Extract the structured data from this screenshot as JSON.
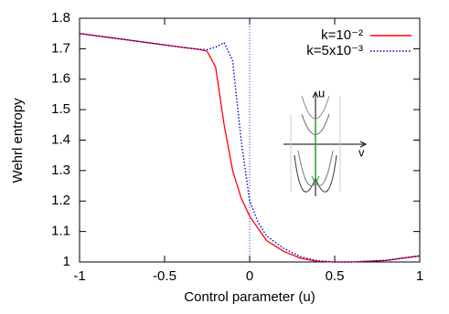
{
  "chart_data": {
    "type": "line",
    "x_label": "Control parameter (u)",
    "y_label": "Wehrl entropy",
    "x": [
      -1,
      -0.8,
      -0.6,
      -0.4,
      -0.3,
      -0.25,
      -0.2,
      -0.15,
      -0.1,
      -0.05,
      0,
      0.05,
      0.1,
      0.2,
      0.3,
      0.4,
      0.5,
      0.6,
      0.8,
      1
    ],
    "series": [
      {
        "name": "k=10⁻²",
        "color": "#ff0000",
        "dash": "solid",
        "values": [
          1.75,
          1.735,
          1.72,
          1.705,
          1.698,
          1.692,
          1.64,
          1.45,
          1.3,
          1.21,
          1.15,
          1.11,
          1.07,
          1.035,
          1.012,
          1.002,
          1.0,
          1.0,
          1.005,
          1.02
        ]
      },
      {
        "name": "k=5x10⁻³",
        "color": "#0000cc",
        "dash": "dotted",
        "values": [
          1.75,
          1.735,
          1.72,
          1.705,
          1.698,
          1.697,
          1.705,
          1.72,
          1.66,
          1.4,
          1.2,
          1.13,
          1.085,
          1.045,
          1.017,
          1.004,
          1.0,
          1.0,
          1.005,
          1.02
        ]
      }
    ],
    "vline": 0,
    "annotations": [
      "u",
      "v"
    ],
    "xlim": [
      -1,
      1
    ],
    "ylim": [
      1,
      1.8
    ],
    "xticks": [
      -1,
      -0.5,
      0,
      0.5,
      1
    ],
    "yticks": [
      1,
      1.1,
      1.2,
      1.3,
      1.4,
      1.5,
      1.6,
      1.7,
      1.8
    ],
    "legend": "upper right"
  }
}
